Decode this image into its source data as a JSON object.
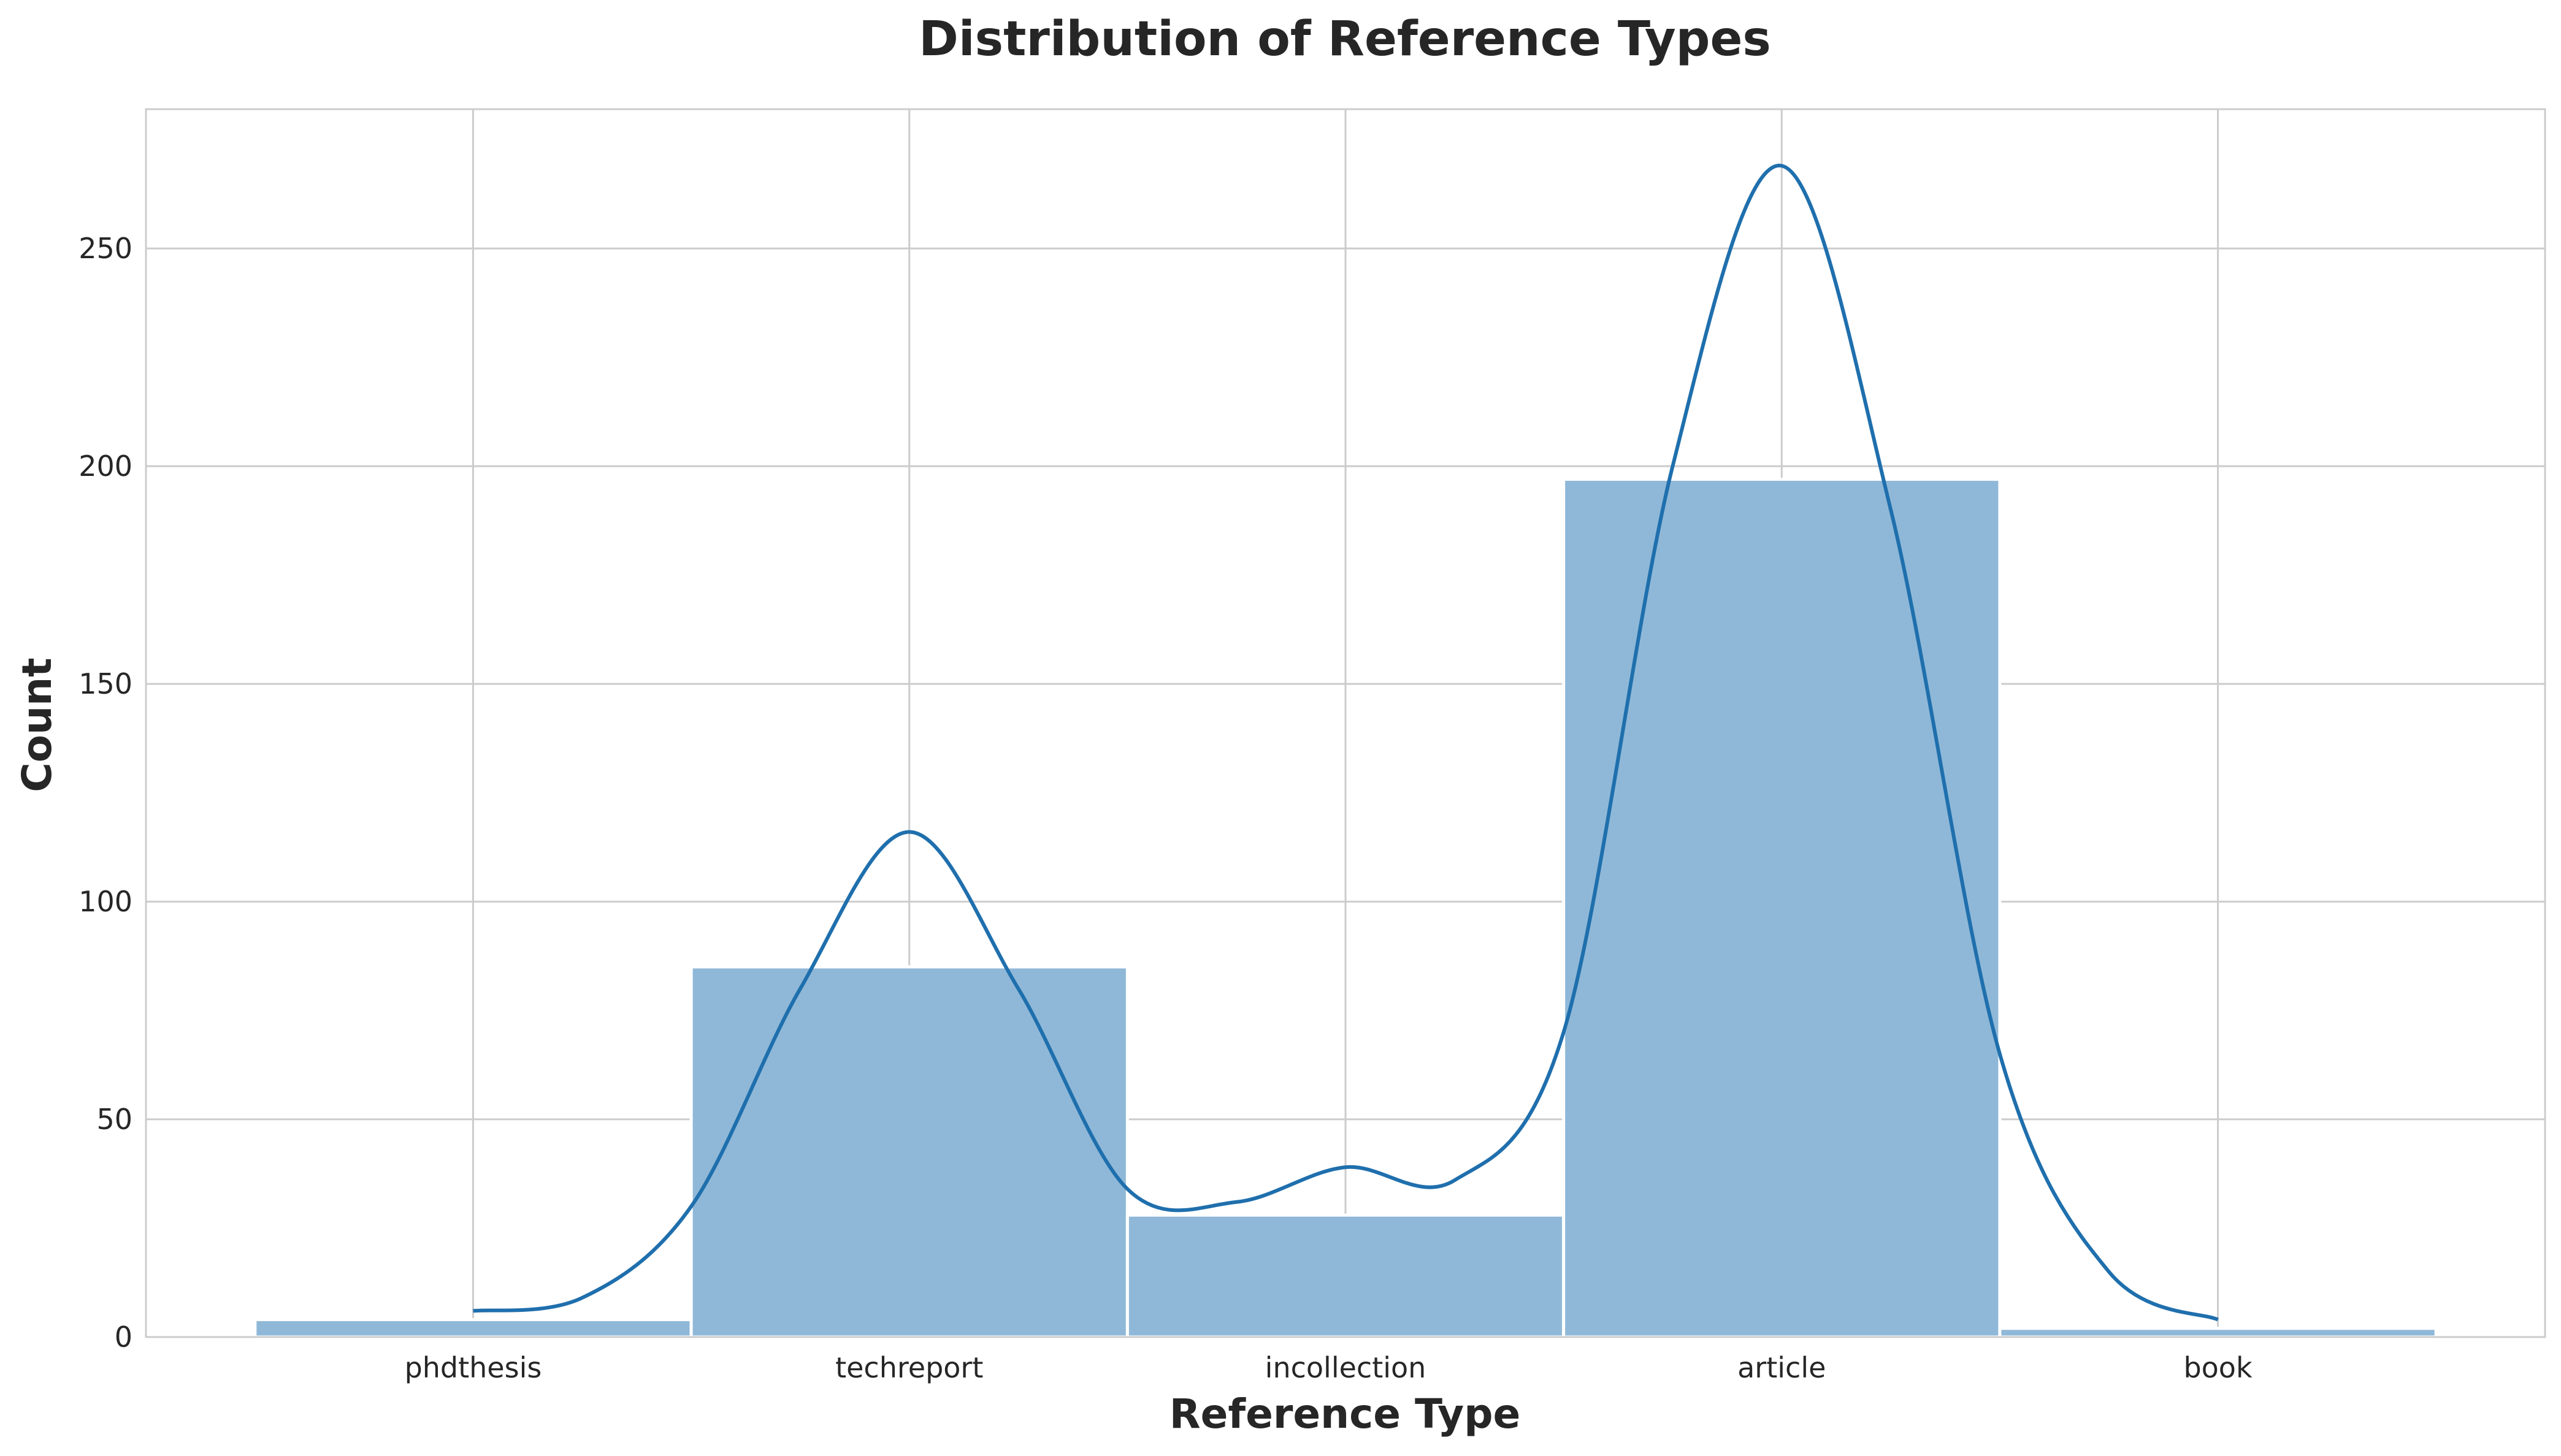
{
  "chart_data": {
    "type": "bar",
    "title": "Distribution of Reference Types",
    "xlabel": "Reference Type",
    "ylabel": "Count",
    "categories": [
      "phdthesis",
      "techreport",
      "incollection",
      "article",
      "book"
    ],
    "values": [
      4,
      85,
      28,
      197,
      2
    ],
    "ylim": [
      0,
      282
    ],
    "yticks": [
      0,
      50,
      100,
      150,
      200,
      250
    ],
    "grid": true,
    "kde": {
      "x": [
        0,
        0.25,
        0.5,
        0.75,
        1.0,
        1.25,
        1.5,
        1.75,
        2.0,
        2.25,
        2.5,
        2.75,
        3.0,
        3.25,
        3.5,
        3.75,
        4.0
      ],
      "y": [
        6,
        9,
        30,
        80,
        116,
        80,
        34,
        31,
        39,
        36,
        70,
        200,
        269,
        190,
        65,
        15,
        4
      ]
    },
    "colors": {
      "bar_fill": "#8fb8d8",
      "bar_edge": "#ffffff",
      "kde_line": "#1f6fad",
      "grid": "#cccccc",
      "spine": "#cccccc"
    }
  }
}
